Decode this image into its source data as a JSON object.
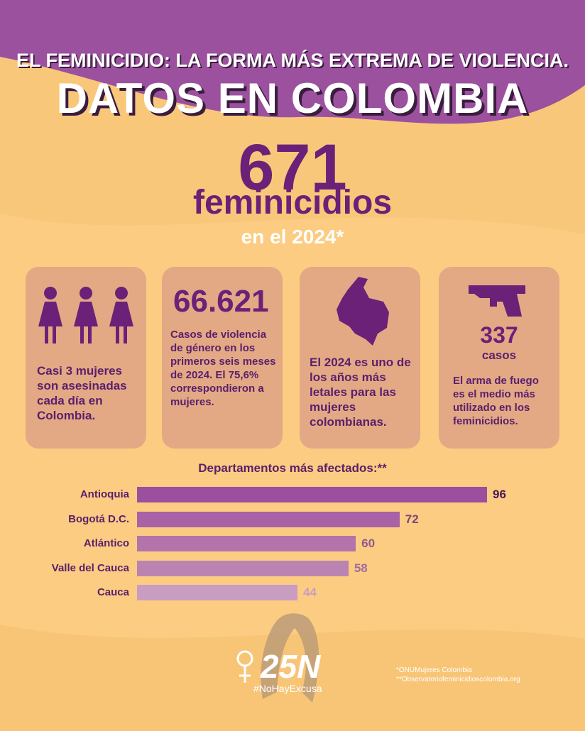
{
  "header": {
    "subtitle": "EL FEMINICIDIO: LA FORMA MÁS EXTREMA DE VIOLENCIA.",
    "title": "DATOS EN COLOMBIA"
  },
  "headline": {
    "number": "671",
    "label": "feminicidios",
    "period": "en el 2024*"
  },
  "cards": [
    {
      "text": "Casi 3 mujeres son asesinadas cada día en Colombia."
    },
    {
      "number": "66.621",
      "text": "Casos de violencia de género en los primeros seis meses de 2024. El 75,6% correspondieron a mujeres."
    },
    {
      "text": "El 2024 es uno de los años más letales para las mujeres colombianas."
    },
    {
      "number": "337",
      "unit": "casos",
      "text": "El arma de fuego es el medio más utilizado en los feminicidios."
    }
  ],
  "chart_data": {
    "type": "bar",
    "orientation": "horizontal",
    "title": "Departamentos más afectados:**",
    "categories": [
      "Antioquia",
      "Bogotá D.C.",
      "Atlántico",
      "Valle del Cauca",
      "Cauca"
    ],
    "values": [
      96,
      72,
      60,
      58,
      44
    ],
    "colors": [
      "#9b4f9e",
      "#a862a5",
      "#b374ab",
      "#bb83b1",
      "#c99dc2"
    ],
    "label_colors": [
      "#4a1a55",
      "#7a4680",
      "#8f5a92",
      "#a06ca3",
      "#c99dc2"
    ]
  },
  "footer": {
    "logo": "25N",
    "hashtag": "#NoHayExcusa",
    "notes": [
      "*ONUMujeres Colombia",
      "**Observatoriofeminicidioscolombia.org"
    ]
  }
}
